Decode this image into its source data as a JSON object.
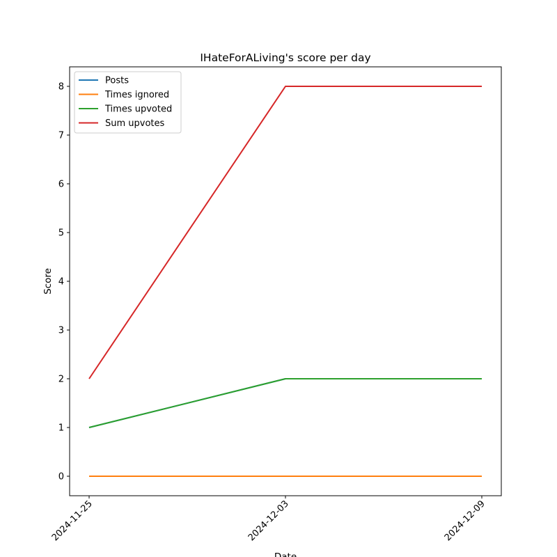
{
  "chart_data": {
    "type": "line",
    "title": "IHateForALiving's score per day",
    "xlabel": "Date",
    "ylabel": "Score",
    "x": [
      "2024-11-25",
      "2024-12-03",
      "2024-12-09"
    ],
    "ylim": [
      -0.4,
      8.4
    ],
    "yticks": [
      0,
      1,
      2,
      3,
      4,
      5,
      6,
      7,
      8
    ],
    "grid": false,
    "legend_position": "top-left",
    "series": [
      {
        "name": "Posts",
        "color": "#1f77b4",
        "values": [
          1,
          2,
          2
        ]
      },
      {
        "name": "Times ignored",
        "color": "#ff7f0e",
        "values": [
          0,
          0,
          0
        ]
      },
      {
        "name": "Times upvoted",
        "color": "#2ca02c",
        "values": [
          1,
          2,
          2
        ]
      },
      {
        "name": "Sum upvotes",
        "color": "#d62728",
        "values": [
          2,
          8,
          8
        ]
      }
    ]
  }
}
